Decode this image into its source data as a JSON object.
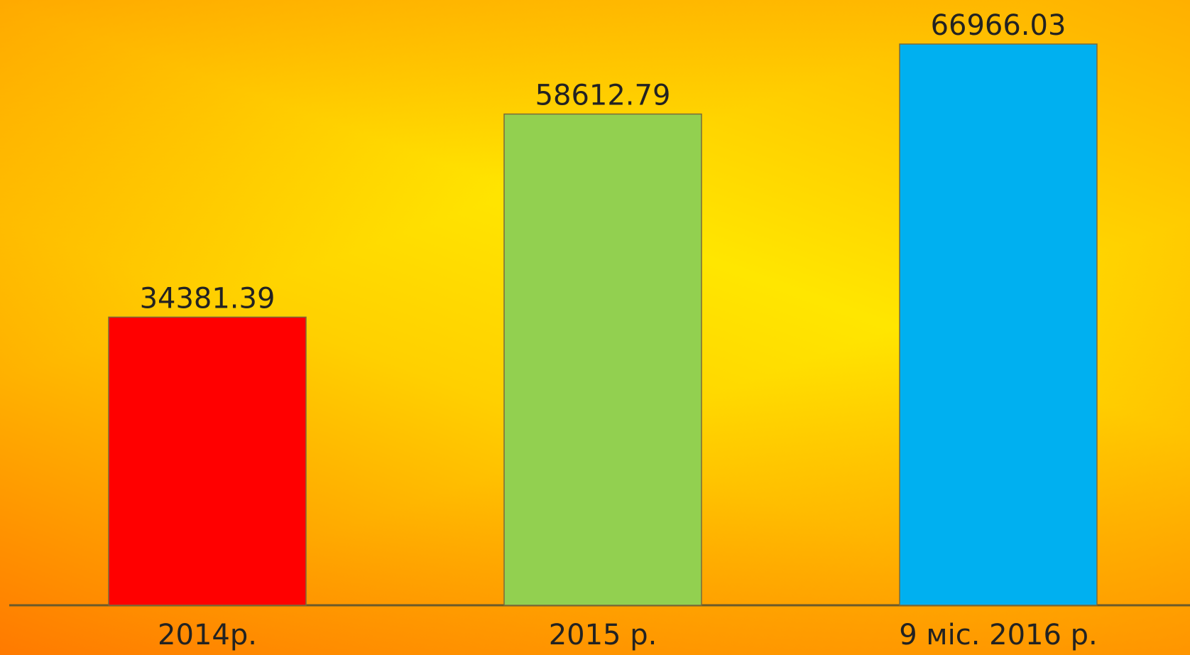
{
  "chart_data": {
    "type": "bar",
    "categories": [
      "2014р.",
      "2015 р.",
      "9 міс. 2016 р."
    ],
    "values": [
      34381.39,
      58612.79,
      66966.03
    ],
    "colors": [
      "#ff0000",
      "#92d050",
      "#00b0f0"
    ]
  }
}
